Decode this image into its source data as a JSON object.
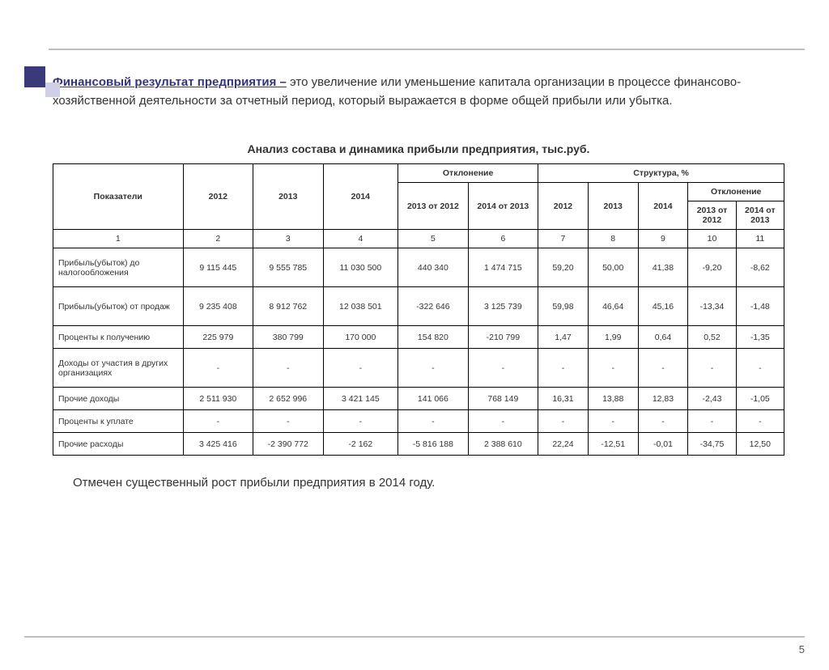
{
  "decoration": {
    "dark_color": "#3a3a7a",
    "light_color": "#cfcfe8"
  },
  "intro": {
    "term": "Финансовый результат предприятия –",
    "text": " это увеличение или уменьшение капитала организации в процессе финансово-хозяйственной деятельности за отчетный период, который выражается в форме общей прибыли или убытка."
  },
  "table": {
    "title": "Анализ состава и динамика прибыли предприятия, тыс.руб.",
    "header": {
      "indicator": "Показатели",
      "y2012": "2012",
      "y2013": "2013",
      "y2014": "2014",
      "deviation": "Отклонение",
      "structure": "Структура, %",
      "dev_13_12": "2013 от 2012",
      "dev_14_13": "2014 от 2013",
      "s_dev": "Отклонение",
      "s_dev_13_12": "2013 от 2012",
      "s_dev_14_13": "2014 от 2013"
    },
    "colnums": [
      "1",
      "2",
      "3",
      "4",
      "5",
      "6",
      "7",
      "8",
      "9",
      "10",
      "11"
    ],
    "rows": [
      {
        "label": "Прибыль(убыток) до налогообложения",
        "tall": true,
        "cells": [
          "9 115 445",
          "9 555 785",
          "11 030 500",
          "440 340",
          "1 474 715",
          "59,20",
          "50,00",
          "41,38",
          "-9,20",
          "-8,62"
        ]
      },
      {
        "label": "Прибыль(убыток) от продаж",
        "tall": true,
        "cells": [
          "9 235 408",
          "8 912 762",
          "12 038 501",
          "-322 646",
          "3 125 739",
          "59,98",
          "46,64",
          "45,16",
          "-13,34",
          "-1,48"
        ]
      },
      {
        "label": "Проценты к получению",
        "tall": false,
        "cells": [
          "225 979",
          "380 799",
          "170 000",
          "154 820",
          "-210 799",
          "1,47",
          "1,99",
          "0,64",
          "0,52",
          "-1,35"
        ]
      },
      {
        "label": "Доходы от участия в других организациях",
        "tall": true,
        "cells": [
          "-",
          "-",
          "-",
          "-",
          "-",
          "-",
          "-",
          "-",
          "-",
          "-"
        ]
      },
      {
        "label": "Прочие доходы",
        "tall": false,
        "cells": [
          "2 511 930",
          "2 652 996",
          "3 421 145",
          "141 066",
          "768 149",
          "16,31",
          "13,88",
          "12,83",
          "-2,43",
          "-1,05"
        ]
      },
      {
        "label": "Проценты к уплате",
        "tall": false,
        "cells": [
          "-",
          "-",
          "-",
          "-",
          "-",
          "-",
          "-",
          "-",
          "-",
          "-"
        ]
      },
      {
        "label": "Прочие расходы",
        "tall": false,
        "cells": [
          "3 425 416",
          "-2 390 772",
          "-2 162",
          "-5 816 188",
          "2 388 610",
          "22,24",
          "-12,51",
          "-0,01",
          "-34,75",
          "12,50"
        ]
      }
    ]
  },
  "footer_note": "Отмечен существенный рост прибыли предприятия в 2014 году.",
  "page_number": "5"
}
